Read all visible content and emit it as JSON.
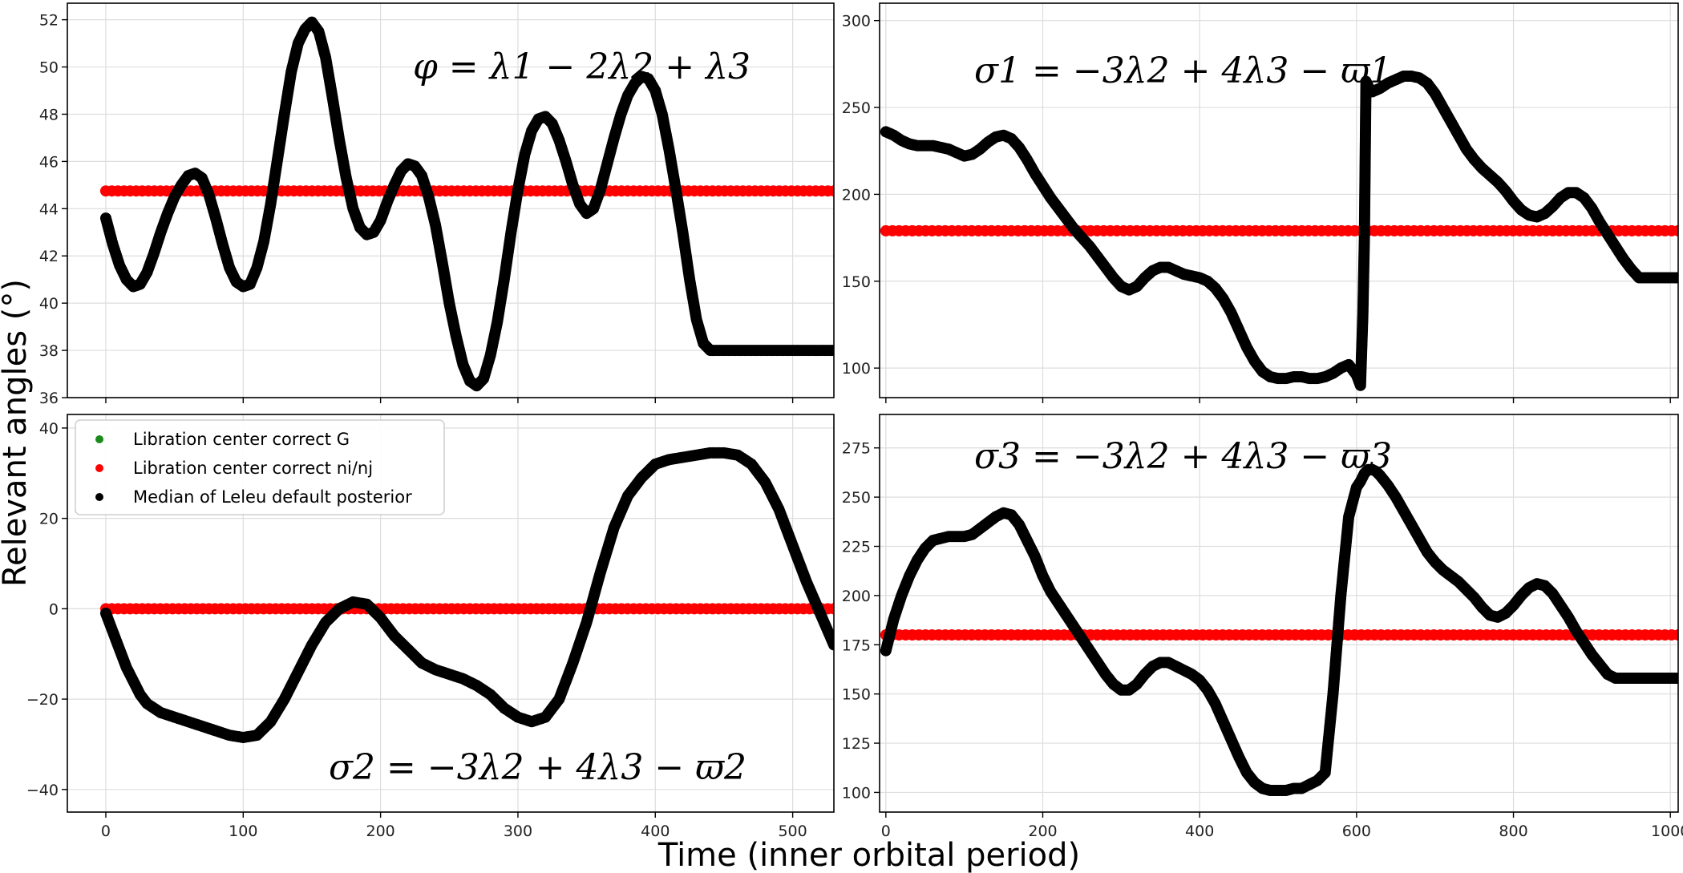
{
  "figure": {
    "ylabel": "Relevant angles (°)",
    "xlabel": "Time (inner orbital period)"
  },
  "legend": {
    "items": [
      {
        "label": "Libration center correct G",
        "color": "#1a8a1a"
      },
      {
        "label": "Libration center correct ni/nj",
        "color": "#ff0000"
      },
      {
        "label": "Median of Leleu default posterior",
        "color": "#000000"
      }
    ]
  },
  "colors": {
    "median": "#000000",
    "libration_nn": "#ff0000",
    "libration_G": "#1a8a1a",
    "grid": "#dddddd"
  },
  "chart_data": [
    {
      "type": "scatter",
      "annotation": "φ = λ1 − 2λ2 + λ3",
      "xlim": [
        -28,
        530
      ],
      "ylim": [
        36,
        52.7
      ],
      "yticks": [
        36,
        38,
        40,
        42,
        44,
        46,
        48,
        50,
        52
      ],
      "xticks": [
        0,
        100,
        200,
        300,
        400,
        500
      ],
      "show_xtick_labels": false,
      "libration_value": 44.75,
      "libration_xrange": [
        0,
        530
      ],
      "series": [
        {
          "x": [
            0,
            5,
            10,
            15,
            20,
            25,
            30,
            35,
            40,
            45,
            50,
            55,
            60,
            65,
            70,
            75,
            80,
            85,
            90,
            95,
            100,
            105,
            110,
            115,
            120,
            125,
            130,
            135,
            140,
            145,
            150,
            155,
            160,
            165,
            170,
            175,
            180,
            185,
            190,
            195,
            200,
            205,
            210,
            215,
            220,
            225,
            230,
            235,
            240,
            245,
            250,
            255,
            260,
            265,
            270,
            275,
            280,
            285,
            290,
            295,
            300,
            305,
            310,
            315,
            320,
            325,
            330,
            335,
            340,
            345,
            350,
            355,
            360,
            365,
            370,
            375,
            380,
            385,
            390,
            395,
            400,
            405,
            410,
            415,
            420,
            425,
            430,
            435,
            440,
            445,
            450,
            455,
            460,
            465,
            470,
            475,
            480,
            485,
            490,
            495,
            500,
            505,
            510,
            515,
            520,
            525,
            530
          ],
          "y": [
            43.6,
            42.5,
            41.6,
            41.0,
            40.7,
            40.8,
            41.3,
            42.1,
            43.0,
            43.8,
            44.5,
            45.0,
            45.4,
            45.5,
            45.3,
            44.6,
            43.6,
            42.5,
            41.5,
            40.9,
            40.7,
            40.8,
            41.5,
            42.6,
            44.2,
            46.1,
            48.0,
            49.8,
            51.0,
            51.6,
            51.9,
            51.5,
            50.4,
            48.7,
            46.9,
            45.3,
            44.0,
            43.2,
            42.9,
            43.0,
            43.5,
            44.3,
            45.0,
            45.6,
            45.9,
            45.8,
            45.4,
            44.5,
            43.3,
            41.7,
            40.0,
            38.6,
            37.4,
            36.7,
            36.5,
            36.8,
            37.8,
            39.2,
            41.0,
            43.0,
            44.8,
            46.3,
            47.3,
            47.8,
            47.9,
            47.6,
            46.9,
            46.0,
            45.0,
            44.2,
            43.8,
            44.0,
            44.8,
            45.9,
            47.0,
            48.0,
            48.8,
            49.3,
            49.6,
            49.5,
            49.0,
            48.0,
            46.5,
            44.8,
            43.0,
            41.0,
            39.3,
            38.3,
            38.0,
            38.0,
            38.0,
            38.0,
            38.0,
            38.0,
            38.0,
            38.0,
            38.0,
            38.0,
            38.0,
            38.0,
            38.0,
            38.0,
            38.0,
            38.0,
            38.0,
            38.0,
            38.0
          ]
        }
      ]
    },
    {
      "type": "scatter",
      "annotation": "σ1 = −3λ2 + 4λ3 − ϖ1",
      "xlim": [
        -8,
        1010
      ],
      "ylim": [
        83,
        310
      ],
      "yticks": [
        100,
        150,
        200,
        250,
        300
      ],
      "xticks": [
        0,
        200,
        400,
        600,
        800,
        1000
      ],
      "show_xtick_labels": false,
      "libration_value": 179,
      "libration_xrange": [
        0,
        1010
      ],
      "series": [
        {
          "x": [
            0,
            10,
            20,
            30,
            40,
            50,
            60,
            70,
            80,
            90,
            100,
            110,
            120,
            130,
            140,
            150,
            160,
            170,
            180,
            190,
            200,
            210,
            220,
            230,
            240,
            250,
            260,
            270,
            280,
            290,
            300,
            310,
            320,
            330,
            340,
            350,
            360,
            370,
            380,
            390,
            400,
            410,
            420,
            430,
            440,
            450,
            460,
            470,
            480,
            490,
            500,
            510,
            520,
            530,
            540,
            550,
            560,
            570,
            580,
            590,
            600,
            605,
            608,
            610,
            612,
            615,
            620,
            630,
            640,
            650,
            660,
            670,
            680,
            690,
            700,
            710,
            720,
            730,
            740,
            750,
            760,
            770,
            780,
            790,
            800,
            810,
            820,
            830,
            840,
            850,
            860,
            870,
            880,
            890,
            900,
            910,
            920,
            930,
            940,
            950,
            960,
            970,
            980,
            990,
            1000,
            1010
          ],
          "y": [
            236,
            234,
            231,
            229,
            228,
            228,
            228,
            227,
            226,
            224,
            222,
            223,
            226,
            230,
            233,
            234,
            232,
            227,
            220,
            212,
            205,
            198,
            192,
            186,
            180,
            175,
            170,
            164,
            158,
            152,
            147,
            145,
            147,
            152,
            156,
            158,
            158,
            156,
            154,
            153,
            152,
            150,
            146,
            140,
            132,
            122,
            112,
            104,
            98,
            95,
            94,
            94,
            95,
            95,
            94,
            94,
            95,
            97,
            100,
            102,
            96,
            90,
            130,
            175,
            265,
            262,
            259,
            261,
            264,
            266,
            268,
            268,
            267,
            264,
            258,
            250,
            242,
            234,
            226,
            220,
            215,
            211,
            207,
            202,
            196,
            191,
            188,
            187,
            189,
            193,
            198,
            201,
            201,
            198,
            192,
            184,
            177,
            170,
            163,
            157,
            152,
            152,
            152,
            152,
            152,
            152
          ]
        }
      ]
    },
    {
      "type": "scatter",
      "annotation": "σ2 = −3λ2 + 4λ3 − ϖ2",
      "xlim": [
        -28,
        530
      ],
      "ylim": [
        -45,
        43
      ],
      "yticks": [
        -40,
        -20,
        0,
        20,
        40
      ],
      "xticks": [
        0,
        100,
        200,
        300,
        400,
        500
      ],
      "show_xtick_labels": true,
      "libration_value": 0,
      "libration_xrange": [
        0,
        530
      ],
      "series": [
        {
          "x": [
            0,
            5,
            10,
            15,
            20,
            25,
            30,
            40,
            50,
            60,
            70,
            80,
            90,
            100,
            110,
            120,
            130,
            140,
            150,
            160,
            170,
            180,
            190,
            200,
            210,
            220,
            230,
            240,
            250,
            260,
            270,
            280,
            290,
            300,
            310,
            320,
            330,
            340,
            350,
            360,
            370,
            380,
            390,
            400,
            410,
            420,
            430,
            440,
            450,
            460,
            470,
            480,
            490,
            500,
            510,
            520,
            530
          ],
          "y": [
            -1,
            -5,
            -9,
            -13,
            -16,
            -19,
            -21,
            -23,
            -24,
            -25,
            -26,
            -27,
            -28,
            -28.5,
            -28,
            -25,
            -20,
            -14,
            -8,
            -3,
            0,
            1.5,
            1,
            -2,
            -6,
            -9,
            -12,
            -13.5,
            -14.5,
            -15.5,
            -17,
            -19,
            -22,
            -24,
            -25,
            -24,
            -20,
            -12,
            -3,
            8,
            18,
            25,
            29,
            32,
            33,
            33.5,
            34,
            34.5,
            34.5,
            34,
            32,
            28,
            22,
            14,
            6,
            -1,
            -8
          ]
        }
      ]
    },
    {
      "type": "scatter",
      "annotation": "σ3 = −3λ2 + 4λ3 − ϖ3",
      "xlim": [
        -8,
        1010
      ],
      "ylim": [
        90,
        292
      ],
      "yticks": [
        100,
        125,
        150,
        175,
        200,
        225,
        250,
        275
      ],
      "xticks": [
        0,
        200,
        400,
        600,
        800,
        1000
      ],
      "show_xtick_labels": true,
      "libration_value": 180,
      "libration_xrange": [
        0,
        1010
      ],
      "series": [
        {
          "x": [
            0,
            5,
            10,
            20,
            30,
            40,
            50,
            60,
            70,
            80,
            90,
            100,
            110,
            120,
            130,
            140,
            150,
            160,
            170,
            180,
            190,
            200,
            210,
            220,
            230,
            240,
            250,
            260,
            270,
            280,
            290,
            300,
            310,
            320,
            330,
            340,
            350,
            360,
            370,
            380,
            390,
            400,
            410,
            420,
            430,
            440,
            450,
            460,
            470,
            480,
            490,
            500,
            510,
            520,
            530,
            540,
            550,
            560,
            570,
            580,
            590,
            600,
            605,
            610,
            615,
            620,
            625,
            630,
            640,
            650,
            660,
            670,
            680,
            690,
            700,
            710,
            720,
            730,
            740,
            750,
            760,
            770,
            780,
            790,
            800,
            810,
            820,
            830,
            840,
            850,
            860,
            870,
            880,
            890,
            900,
            910,
            920,
            930,
            940,
            950,
            960,
            970,
            980,
            990,
            1000,
            1010
          ],
          "y": [
            172,
            180,
            188,
            200,
            210,
            218,
            224,
            228,
            229,
            230,
            230,
            230,
            231,
            234,
            237,
            240,
            242,
            241,
            236,
            228,
            220,
            210,
            202,
            196,
            190,
            184,
            178,
            172,
            166,
            160,
            155,
            152,
            152,
            155,
            160,
            164,
            166,
            166,
            164,
            162,
            160,
            157,
            152,
            145,
            136,
            127,
            118,
            110,
            105,
            102,
            101,
            101,
            101,
            102,
            102,
            104,
            106,
            110,
            150,
            200,
            240,
            255,
            258,
            262,
            264,
            264,
            263,
            261,
            256,
            250,
            243,
            236,
            229,
            222,
            217,
            213,
            210,
            207,
            203,
            199,
            194,
            190,
            189,
            191,
            195,
            200,
            204,
            206,
            205,
            201,
            195,
            189,
            182,
            176,
            170,
            165,
            160,
            158,
            158,
            158,
            158,
            158,
            158,
            158,
            158,
            158
          ]
        }
      ]
    }
  ]
}
